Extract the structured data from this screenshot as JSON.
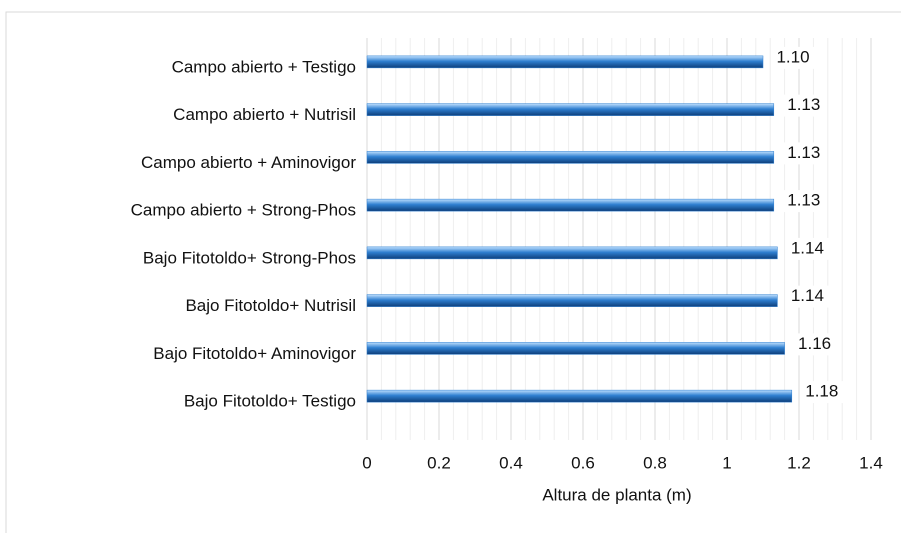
{
  "chart_data": {
    "type": "hbar",
    "x_label": "Altura de planta (m)",
    "categories": [
      "Campo abierto + Testigo",
      "Campo abierto + Nutrisil",
      "Campo abierto + Aminovigor",
      "Campo abierto + Strong-Phos",
      "Bajo Fitotoldo+ Strong-Phos",
      "Bajo Fitotoldo+ Nutrisil",
      "Bajo Fitotoldo+ Aminovigor",
      "Bajo Fitotoldo+ Testigo"
    ],
    "values": [
      1.1,
      1.13,
      1.13,
      1.13,
      1.14,
      1.14,
      1.16,
      1.18
    ],
    "value_labels": [
      "1.10",
      "1.13",
      "1.13",
      "1.13",
      "1.14",
      "1.14",
      "1.16",
      "1.18"
    ],
    "color": "#2f7fd0",
    "xlim": [
      0,
      1.4
    ],
    "xticks": [
      0,
      0.2,
      0.4,
      0.6,
      0.8,
      1,
      1.2,
      1.4
    ],
    "grid": true
  }
}
